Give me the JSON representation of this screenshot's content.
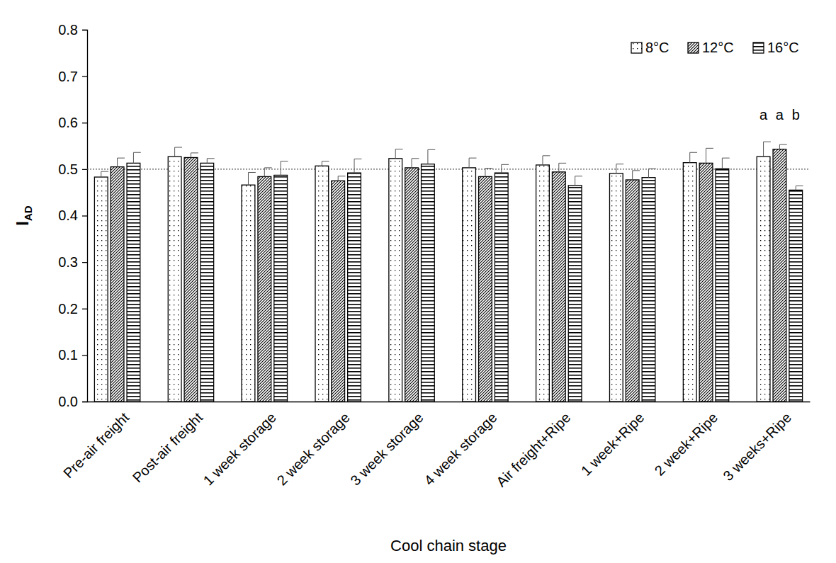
{
  "chart_data": {
    "type": "bar",
    "x_label": "Cool chain stage",
    "y_label": "I",
    "y_label_subscript": "AD",
    "categories": [
      "Pre-air freight",
      "Post-air freight",
      "1 week storage",
      "2 week storage",
      "3 week storage",
      "4 week storage",
      "Air freight+Ripe",
      "1 week+Ripe",
      "2 week+Ripe",
      "3 weeks+Ripe"
    ],
    "series": [
      {
        "name": "8°C",
        "color": "#000000",
        "values": [
          0.483,
          0.527,
          0.466,
          0.507,
          0.523,
          0.503,
          0.509,
          0.491,
          0.514,
          0.527
        ],
        "errors": [
          0.012,
          0.02,
          0.027,
          0.01,
          0.02,
          0.021,
          0.02,
          0.02,
          0.022,
          0.032
        ]
      },
      {
        "name": "12°C",
        "color": "#000000",
        "values": [
          0.505,
          0.525,
          0.484,
          0.475,
          0.503,
          0.484,
          0.494,
          0.477,
          0.513,
          0.543
        ],
        "errors": [
          0.019,
          0.01,
          0.019,
          0.01,
          0.02,
          0.018,
          0.019,
          0.02,
          0.032,
          0.01
        ]
      },
      {
        "name": "16°C",
        "color": "#000000",
        "values": [
          0.513,
          0.513,
          0.487,
          0.492,
          0.511,
          0.492,
          0.465,
          0.482,
          0.501,
          0.455
        ],
        "errors": [
          0.023,
          0.01,
          0.03,
          0.03,
          0.031,
          0.018,
          0.02,
          0.019,
          0.023,
          0.009
        ]
      }
    ],
    "reference_line": 0.5,
    "annotations": [
      {
        "category": "3 weeks+Ripe",
        "texts": [
          "a",
          "a",
          "b"
        ]
      }
    ],
    "ylim": [
      0,
      0.8
    ],
    "yticks": [
      {
        "value": 0,
        "label": "0.0"
      },
      0.1,
      0.2,
      0.3,
      0.4,
      0.5,
      0.6,
      0.7,
      0.8
    ],
    "legend": "top-right",
    "grid": false
  }
}
